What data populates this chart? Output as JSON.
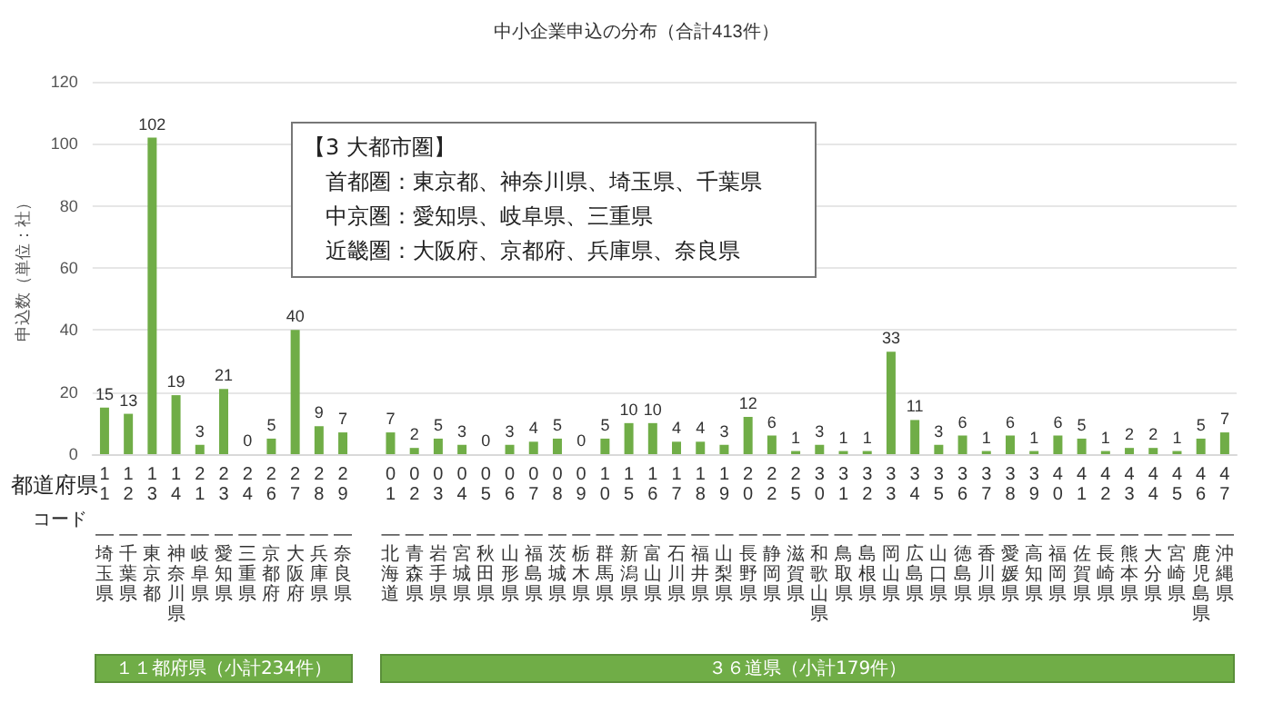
{
  "chart_data": {
    "type": "bar",
    "title": "中小企業申込の分布（合計413件）",
    "ylabel": "申込数（単位：社）",
    "categories": [
      "11—埼玉県",
      "12—千葉県",
      "13—東京都",
      "14—神奈川県",
      "21—岐阜県",
      "23—愛知県",
      "24—三重県",
      "26—京都府",
      "27—大阪府",
      "28—兵庫県",
      "29—奈良県",
      null,
      "01—北海道",
      "02—青森県",
      "03—岩手県",
      "04—宮城県",
      "05—秋田県",
      "06—山形県",
      "07—福島県",
      "08—茨城県",
      "09—栃木県",
      "10—群馬県",
      "15—新潟県",
      "16—富山県",
      "17—石川県",
      "18—福井県",
      "19—山梨県",
      "20—長野県",
      "22—静岡県",
      "25—滋賀県",
      "30—和歌山県",
      "31—鳥取県",
      "32—島根県",
      "33—岡山県",
      "34—広島県",
      "35—山口県",
      "36—徳島県",
      "37—香川県",
      "38—愛媛県",
      "39—高知県",
      "40—福岡県",
      "41—佐賀県",
      "42—長崎県",
      "43—熊本県",
      "44—大分県",
      "45—宮崎県",
      "46—鹿児島県",
      "47—沖縄県"
    ],
    "values": [
      15,
      13,
      102,
      19,
      3,
      21,
      0,
      5,
      40,
      9,
      7,
      null,
      7,
      2,
      5,
      3,
      0,
      3,
      4,
      5,
      0,
      5,
      10,
      10,
      4,
      4,
      3,
      12,
      6,
      1,
      3,
      1,
      1,
      33,
      11,
      3,
      6,
      1,
      6,
      1,
      6,
      5,
      1,
      2,
      2,
      1,
      5,
      7
    ],
    "color": "#70ad47",
    "data_labels": true,
    "ylim": [
      0,
      120
    ],
    "yticks": [
      0,
      20,
      40,
      60,
      80,
      100,
      120
    ],
    "grid": "y",
    "annotations": [
      "【3 大都市圏】",
      "首都圏：東京都、神奈川県、埼玉県、千葉県",
      "中京圏：愛知県、岐阜県、三重県",
      "近畿圏：大阪府、京都府、兵庫県、奈良県",
      "都道府県",
      "コード",
      "１１都府県（小計234件）",
      "３６道県（小計179件）"
    ]
  }
}
